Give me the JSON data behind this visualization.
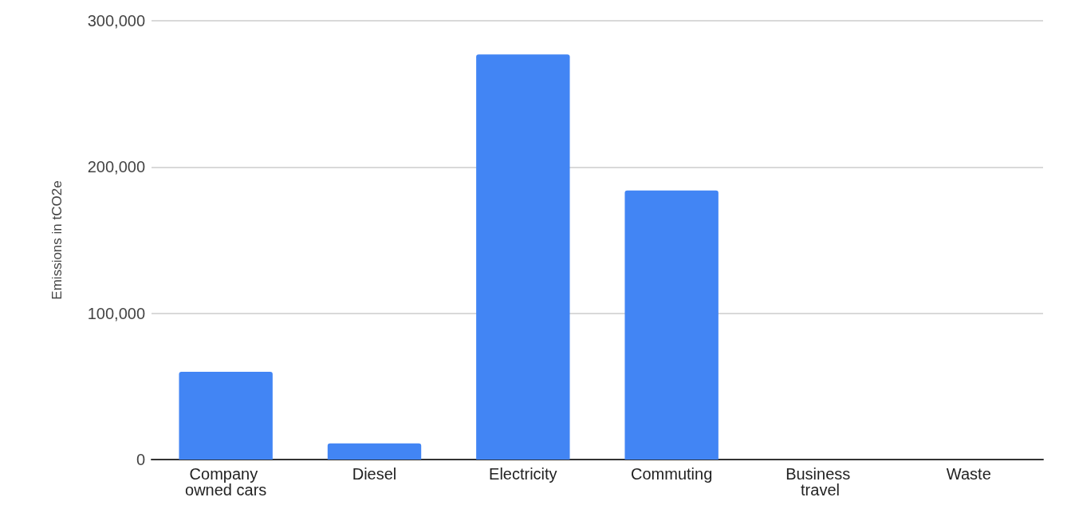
{
  "chart_data": {
    "type": "bar",
    "ylabel": "Emissions in tCO2e",
    "categories": [
      "Company owned cars",
      "Diesel",
      "Electricity",
      "Commuting",
      "Business travel",
      "Waste"
    ],
    "values": [
      60000,
      11000,
      277000,
      184000,
      0,
      0
    ],
    "color": "#4285f4",
    "ylim": [
      0,
      300000
    ],
    "yticks": [
      0,
      {
        "value": 100000,
        "label": "100,000"
      },
      {
        "value": 200000,
        "label": "200,000"
      },
      {
        "value": 300000,
        "label": "300,000"
      }
    ],
    "grid": "y"
  }
}
